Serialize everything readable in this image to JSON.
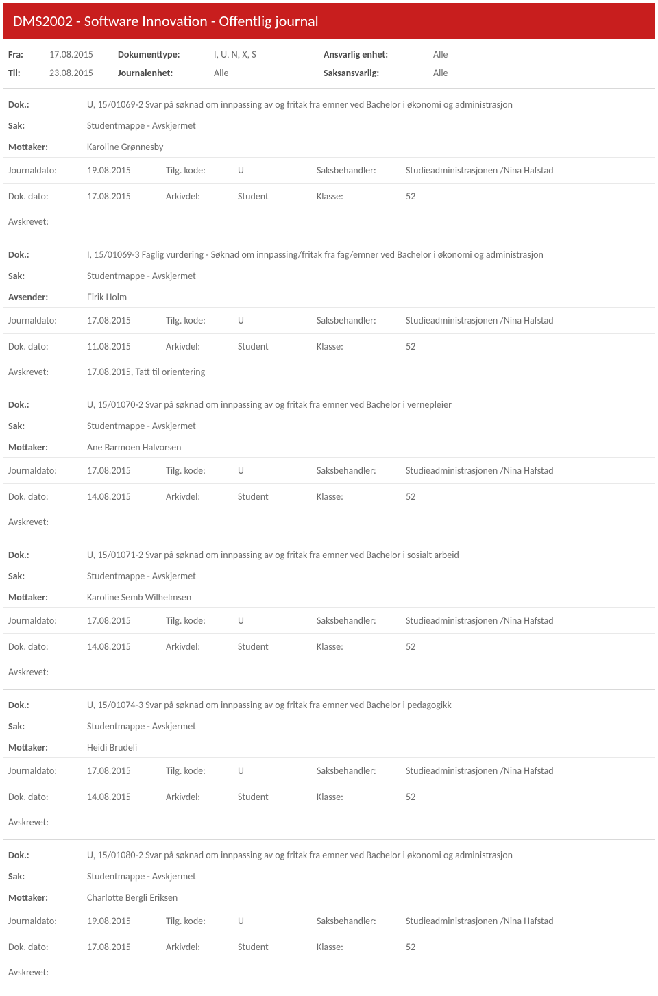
{
  "header": {
    "title": "DMS2002 - Software Innovation - Offentlig journal"
  },
  "filters": {
    "fra_label": "Fra:",
    "fra_value": "17.08.2015",
    "til_label": "Til:",
    "til_value": "23.08.2015",
    "dokumenttype_label": "Dokumenttype:",
    "dokumenttype_value": "I, U, N, X, S",
    "journalenhet_label": "Journalenhet:",
    "journalenhet_value": "Alle",
    "ansvarlig_label": "Ansvarlig enhet:",
    "ansvarlig_value": "Alle",
    "saksansvarlig_label": "Saksansvarlig:",
    "saksansvarlig_value": "Alle"
  },
  "labels": {
    "dok": "Dok.:",
    "sak": "Sak:",
    "mottaker": "Mottaker:",
    "avsender": "Avsender:",
    "journaldato": "Journaldato:",
    "tilgkode": "Tilg. kode:",
    "saksbehandler": "Saksbehandler:",
    "dokdato": "Dok. dato:",
    "arkivdel": "Arkivdel:",
    "klasse": "Klasse:",
    "avskrevet": "Avskrevet:"
  },
  "entries": [
    {
      "dok": "U, 15/01069-2 Svar på søknad om innpassing av og fritak fra emner ved Bachelor i økonomi og administrasjon",
      "sak": "Studentmappe - Avskjermet",
      "party_label_key": "mottaker",
      "party": "Karoline Grønnesby",
      "journaldato": "19.08.2015",
      "tilgkode": "U",
      "saksbehandler": "Studieadministrasjonen /Nina Hafstad",
      "dokdato": "17.08.2015",
      "arkivdel": "Student",
      "klasse": "52",
      "avskrevet": ""
    },
    {
      "dok": "I, 15/01069-3 Faglig vurdering - Søknad om innpassing/fritak fra fag/emner ved Bachelor i økonomi og administrasjon",
      "sak": "Studentmappe - Avskjermet",
      "party_label_key": "avsender",
      "party": "Eirik Holm",
      "journaldato": "17.08.2015",
      "tilgkode": "U",
      "saksbehandler": "Studieadministrasjonen /Nina Hafstad",
      "dokdato": "11.08.2015",
      "arkivdel": "Student",
      "klasse": "52",
      "avskrevet": "17.08.2015, Tatt til orientering"
    },
    {
      "dok": "U, 15/01070-2 Svar på søknad om innpassing av og fritak fra emner ved Bachelor i vernepleier",
      "sak": "Studentmappe - Avskjermet",
      "party_label_key": "mottaker",
      "party": "Ane Barmoen Halvorsen",
      "journaldato": "17.08.2015",
      "tilgkode": "U",
      "saksbehandler": "Studieadministrasjonen /Nina Hafstad",
      "dokdato": "14.08.2015",
      "arkivdel": "Student",
      "klasse": "52",
      "avskrevet": ""
    },
    {
      "dok": "U, 15/01071-2 Svar på søknad om innpassing av og fritak fra emner ved Bachelor i sosialt arbeid",
      "sak": "Studentmappe - Avskjermet",
      "party_label_key": "mottaker",
      "party": "Karoline Semb Wilhelmsen",
      "journaldato": "17.08.2015",
      "tilgkode": "U",
      "saksbehandler": "Studieadministrasjonen /Nina Hafstad",
      "dokdato": "14.08.2015",
      "arkivdel": "Student",
      "klasse": "52",
      "avskrevet": ""
    },
    {
      "dok": "U, 15/01074-3 Svar på søknad om innpassing av og fritak fra emner ved Bachelor i pedagogikk",
      "sak": "Studentmappe - Avskjermet",
      "party_label_key": "mottaker",
      "party": "Heidi Brudeli",
      "journaldato": "17.08.2015",
      "tilgkode": "U",
      "saksbehandler": "Studieadministrasjonen /Nina Hafstad",
      "dokdato": "14.08.2015",
      "arkivdel": "Student",
      "klasse": "52",
      "avskrevet": ""
    },
    {
      "dok": "U, 15/01080-2 Svar på søknad om innpassing av og fritak fra emner ved Bachelor i økonomi og administrasjon",
      "sak": "Studentmappe - Avskjermet",
      "party_label_key": "mottaker",
      "party": "Charlotte Bergli Eriksen",
      "journaldato": "19.08.2015",
      "tilgkode": "U",
      "saksbehandler": "Studieadministrasjonen /Nina Hafstad",
      "dokdato": "17.08.2015",
      "arkivdel": "Student",
      "klasse": "52",
      "avskrevet": ""
    }
  ]
}
